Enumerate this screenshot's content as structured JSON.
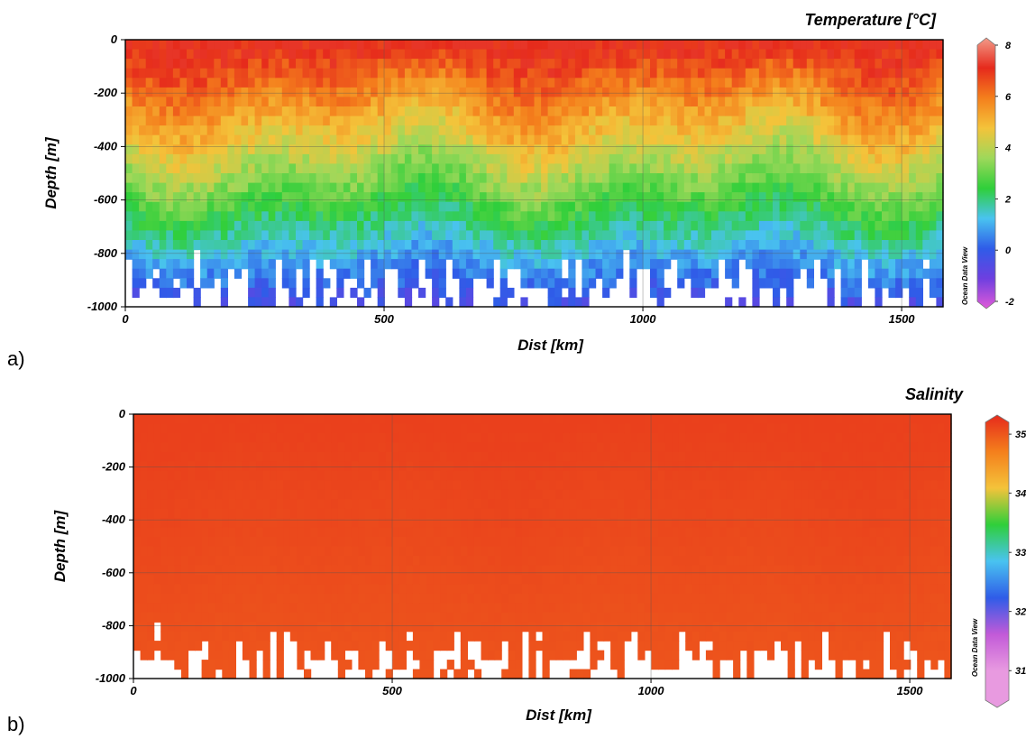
{
  "chart_data": [
    {
      "type": "heatmap",
      "panel_label": "a)",
      "title": "Temperature [°C]",
      "xlabel": "Dist [km]",
      "ylabel": "Depth [m]",
      "xlim": [
        0,
        1580
      ],
      "ylim": [
        -1000,
        0
      ],
      "x_ticks": [
        "0",
        "500",
        "1000",
        "1500"
      ],
      "x_tick_values": [
        0,
        500,
        1000,
        1500
      ],
      "y_ticks": [
        "0",
        "-200",
        "-400",
        "-600",
        "-800",
        "-1000"
      ],
      "y_tick_values": [
        0,
        -200,
        -400,
        -600,
        -800,
        -1000
      ],
      "grid": true,
      "colorbar": {
        "labels": [
          "8",
          "6",
          "4",
          "2",
          "0",
          "-2"
        ],
        "values": [
          8,
          6,
          4,
          2,
          0,
          -2
        ],
        "range": [
          -2,
          8
        ],
        "colors": [
          "#e05ad8",
          "#6e3fe0",
          "#2f5ce8",
          "#49c3f0",
          "#2fcf3a",
          "#9ed85a",
          "#f4c33a",
          "#f47f1c",
          "#e62a1c",
          "#f29a88"
        ]
      },
      "watermark": "Ocean Data View",
      "surface_value": 7,
      "bottom_value": -0.5
    },
    {
      "type": "heatmap",
      "panel_label": "b)",
      "title": "Salinity",
      "xlabel": "Dist [km]",
      "ylabel": "Depth [m]",
      "xlim": [
        0,
        1580
      ],
      "ylim": [
        -1000,
        0
      ],
      "x_ticks": [
        "0",
        "500",
        "1000",
        "1500"
      ],
      "x_tick_values": [
        0,
        500,
        1000,
        1500
      ],
      "y_ticks": [
        "0",
        "-200",
        "-400",
        "-600",
        "-800",
        "-1000"
      ],
      "y_tick_values": [
        0,
        -200,
        -400,
        -600,
        -800,
        -1000
      ],
      "grid": true,
      "colorbar": {
        "labels": [
          "35",
          "34",
          "33",
          "32",
          "31"
        ],
        "values": [
          35,
          34,
          33,
          32,
          31
        ],
        "range": [
          30.5,
          35.2
        ],
        "colors": [
          "#e89ae0",
          "#e89ae0",
          "#c25ad8",
          "#2f5ce8",
          "#49c3f0",
          "#2fcf3a",
          "#f4c33a",
          "#f47f1c",
          "#e62a1c"
        ]
      },
      "watermark": "Ocean Data View",
      "surface_value": 35.05,
      "bottom_value": 34.9
    }
  ]
}
